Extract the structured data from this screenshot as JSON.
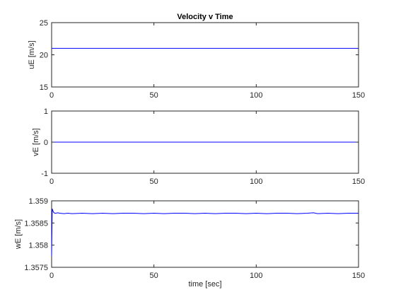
{
  "chart_data": [
    {
      "type": "line",
      "title": "Velocity v Time",
      "xlabel": "",
      "ylabel": "uE [m/s]",
      "xlim": [
        0,
        150
      ],
      "ylim": [
        15,
        25
      ],
      "xticks": [
        0,
        50,
        100,
        150
      ],
      "yticks": [
        15,
        20,
        25
      ],
      "ytick_labels": [
        "15",
        "20",
        "25"
      ],
      "grid": false,
      "series": [
        {
          "color": "#0000ff",
          "x": [
            0,
            150
          ],
          "y": [
            21,
            21
          ]
        }
      ]
    },
    {
      "type": "line",
      "title": "",
      "xlabel": "",
      "ylabel": "vE [m/s]",
      "xlim": [
        0,
        150
      ],
      "ylim": [
        -1,
        1
      ],
      "xticks": [
        0,
        50,
        100,
        150
      ],
      "yticks": [
        -1,
        0,
        1
      ],
      "ytick_labels": [
        "-1",
        "0",
        "1"
      ],
      "grid": false,
      "series": [
        {
          "color": "#0000ff",
          "x": [
            0,
            150
          ],
          "y": [
            0,
            0
          ]
        }
      ]
    },
    {
      "type": "line",
      "title": "",
      "xlabel": "time [sec]",
      "ylabel": "wE [m/s]",
      "xlim": [
        0,
        150
      ],
      "ylim": [
        1.3575,
        1.359
      ],
      "xticks": [
        0,
        50,
        100,
        150
      ],
      "yticks": [
        1.3575,
        1.358,
        1.3585,
        1.359
      ],
      "ytick_labels": [
        "1.3575",
        "1.358",
        "1.3585",
        "1.359"
      ],
      "grid": false,
      "series": [
        {
          "color": "#0000ff",
          "x": [
            0,
            0.3,
            0.6,
            1,
            1.5,
            2,
            3,
            4,
            6,
            8,
            10,
            15,
            20,
            25,
            30,
            35,
            40,
            45,
            50,
            55,
            60,
            65,
            70,
            75,
            80,
            85,
            90,
            95,
            100,
            105,
            110,
            115,
            120,
            125,
            128,
            130,
            135,
            140,
            145,
            150
          ],
          "y": [
            1.35776,
            1.35882,
            1.35878,
            1.35874,
            1.35872,
            1.35872,
            1.35873,
            1.35872,
            1.35871,
            1.35872,
            1.35871,
            1.35872,
            1.35871,
            1.35872,
            1.35871,
            1.35872,
            1.35872,
            1.35871,
            1.35872,
            1.35871,
            1.35872,
            1.35872,
            1.35871,
            1.35872,
            1.35871,
            1.35872,
            1.35872,
            1.35871,
            1.35872,
            1.35871,
            1.35872,
            1.35872,
            1.35871,
            1.35872,
            1.35873,
            1.35871,
            1.35872,
            1.35871,
            1.35872,
            1.35872
          ]
        }
      ]
    }
  ]
}
